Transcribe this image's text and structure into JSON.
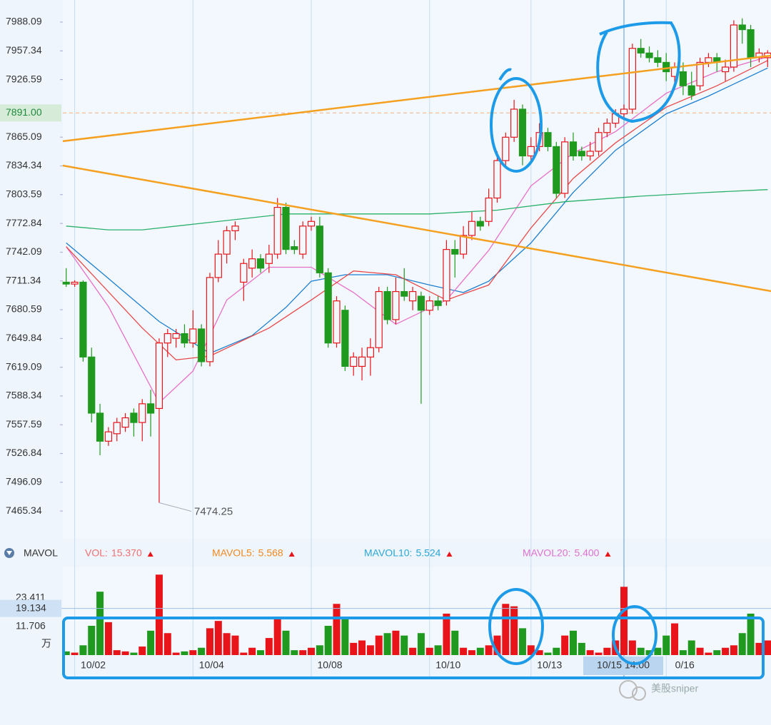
{
  "chart_data": {
    "type": "candlestick",
    "ylim": [
      7435.7,
      8011.7
    ],
    "yticks": [
      7988.09,
      7957.34,
      7926.59,
      7865.09,
      7834.34,
      7803.59,
      7772.84,
      7742.09,
      7711.34,
      7680.59,
      7649.84,
      7619.09,
      7588.34,
      7557.59,
      7526.84,
      7496.09,
      7465.34
    ],
    "current_price": {
      "value": 7891,
      "label": "7891.00"
    },
    "xlim": [
      -0.4,
      83.4
    ],
    "categories": [
      null,
      "10/02",
      null,
      null,
      null,
      null,
      null,
      null,
      null,
      null,
      null,
      null,
      null,
      null,
      null,
      "10/04",
      null,
      null,
      null,
      null,
      null,
      null,
      null,
      null,
      null,
      null,
      null,
      null,
      null,
      "10/08",
      null,
      null,
      null,
      null,
      null,
      null,
      null,
      null,
      null,
      null,
      null,
      null,
      null,
      "10/10",
      null,
      null,
      null,
      null,
      null,
      null,
      null,
      null,
      null,
      null,
      null,
      "10/13",
      null,
      null,
      null,
      null,
      null,
      null,
      null,
      null,
      null,
      null,
      "10/15 14:00",
      null,
      null,
      null,
      null,
      "0/16",
      null,
      null,
      null,
      null,
      null,
      null,
      null,
      null,
      null,
      null,
      null,
      null
    ],
    "cursor_index": 66,
    "up_color": "#e8141a",
    "down_color": "#1f9a1f",
    "ohlc": [
      [
        7710,
        7725,
        7705,
        7708
      ],
      [
        7708,
        7712,
        7705,
        7710
      ],
      [
        7710,
        7712,
        7625,
        7630
      ],
      [
        7630,
        7640,
        7560,
        7570
      ],
      [
        7570,
        7580,
        7525,
        7540
      ],
      [
        7540,
        7555,
        7535,
        7550
      ],
      [
        7548,
        7565,
        7540,
        7560
      ],
      [
        7555,
        7570,
        7550,
        7565
      ],
      [
        7570,
        7575,
        7545,
        7560
      ],
      [
        7560,
        7585,
        7540,
        7580
      ],
      [
        7580,
        7595,
        7545,
        7570
      ],
      [
        7575,
        7650,
        7474.25,
        7645
      ],
      [
        7645,
        7660,
        7630,
        7655
      ],
      [
        7650,
        7660,
        7640,
        7655
      ],
      [
        7655,
        7665,
        7640,
        7645
      ],
      [
        7645,
        7680,
        7640,
        7660
      ],
      [
        7660,
        7665,
        7620,
        7625
      ],
      [
        7625,
        7720,
        7620,
        7715
      ],
      [
        7715,
        7755,
        7710,
        7740
      ],
      [
        7740,
        7770,
        7730,
        7765
      ],
      [
        7765,
        7775,
        7755,
        7770
      ],
      [
        7710,
        7735,
        7690,
        7730
      ],
      [
        7725,
        7745,
        7715,
        7735
      ],
      [
        7735,
        7740,
        7720,
        7725
      ],
      [
        7730,
        7750,
        7720,
        7740
      ],
      [
        7740,
        7800,
        7735,
        7790
      ],
      [
        7790,
        7795,
        7740,
        7745
      ],
      [
        7748,
        7755,
        7740,
        7745
      ],
      [
        7740,
        7775,
        7735,
        7770
      ],
      [
        7770,
        7780,
        7765,
        7775
      ],
      [
        7770,
        7780,
        7715,
        7720
      ],
      [
        7720,
        7725,
        7640,
        7645
      ],
      [
        7645,
        7695,
        7640,
        7690
      ],
      [
        7680,
        7685,
        7615,
        7620
      ],
      [
        7620,
        7635,
        7610,
        7630
      ],
      [
        7620,
        7640,
        7605,
        7630
      ],
      [
        7630,
        7650,
        7610,
        7640
      ],
      [
        7640,
        7705,
        7635,
        7700
      ],
      [
        7700,
        7705,
        7665,
        7670
      ],
      [
        7670,
        7715,
        7665,
        7700
      ],
      [
        7700,
        7725,
        7690,
        7695
      ],
      [
        7690,
        7705,
        7680,
        7700
      ],
      [
        7695,
        7700,
        7580,
        7680
      ],
      [
        7680,
        7695,
        7675,
        7690
      ],
      [
        7690,
        7695,
        7680,
        7685
      ],
      [
        7690,
        7755,
        7685,
        7745
      ],
      [
        7745,
        7755,
        7715,
        7740
      ],
      [
        7740,
        7770,
        7735,
        7760
      ],
      [
        7760,
        7785,
        7755,
        7775
      ],
      [
        7775,
        7780,
        7765,
        7770
      ],
      [
        7775,
        7810,
        7770,
        7800
      ],
      [
        7800,
        7850,
        7795,
        7840
      ],
      [
        7840,
        7870,
        7835,
        7865
      ],
      [
        7865,
        7905,
        7860,
        7895
      ],
      [
        7895,
        7900,
        7835,
        7845
      ],
      [
        7845,
        7865,
        7840,
        7855
      ],
      [
        7855,
        7880,
        7850,
        7870
      ],
      [
        7870,
        7875,
        7850,
        7855
      ],
      [
        7855,
        7860,
        7800,
        7805
      ],
      [
        7805,
        7865,
        7800,
        7860
      ],
      [
        7860,
        7870,
        7840,
        7845
      ],
      [
        7850,
        7855,
        7840,
        7845
      ],
      [
        7845,
        7860,
        7840,
        7850
      ],
      [
        7850,
        7875,
        7845,
        7870
      ],
      [
        7870,
        7885,
        7865,
        7880
      ],
      [
        7880,
        7895,
        7875,
        7890
      ],
      [
        7890,
        7900,
        7885,
        7895
      ],
      [
        7895,
        7965,
        7890,
        7960
      ],
      [
        7960,
        7970,
        7950,
        7955
      ],
      [
        7955,
        7962,
        7945,
        7950
      ],
      [
        7950,
        7958,
        7940,
        7945
      ],
      [
        7945,
        7955,
        7925,
        7935
      ],
      [
        7930,
        7945,
        7920,
        7940
      ],
      [
        7935,
        7945,
        7910,
        7920
      ],
      [
        7920,
        7935,
        7905,
        7910
      ],
      [
        7920,
        7950,
        7915,
        7945
      ],
      [
        7945,
        7955,
        7940,
        7950
      ],
      [
        7950,
        7955,
        7935,
        7945
      ],
      [
        7935,
        7948,
        7925,
        7940
      ],
      [
        7940,
        7990,
        7935,
        7985
      ],
      [
        7985,
        7992,
        7965,
        7980
      ],
      [
        7980,
        7985,
        7940,
        7950
      ],
      [
        7950,
        7960,
        7945,
        7955
      ],
      [
        7950,
        7958,
        7940,
        7955
      ]
    ],
    "ma_lines": [
      {
        "color": "#1e7fd0",
        "x": [
          0,
          5,
          11,
          17,
          22,
          26,
          29,
          33,
          38,
          43,
          47,
          50,
          55,
          60,
          65,
          71,
          76,
          83
        ],
        "values": [
          7752,
          7714,
          7668,
          7634,
          7653,
          7683,
          7711,
          7718,
          7718,
          7707,
          7699,
          7711,
          7752,
          7806,
          7851,
          7890,
          7909,
          7939
        ]
      },
      {
        "color": "#e86fc8",
        "x": [
          0,
          5,
          11,
          15,
          19,
          24,
          29,
          34,
          39,
          45,
          50,
          55,
          60,
          65,
          71,
          77,
          83
        ],
        "values": [
          7748,
          7684,
          7581,
          7615,
          7691,
          7726,
          7726,
          7699,
          7665,
          7691,
          7744,
          7813,
          7848,
          7871,
          7912,
          7935,
          7951
        ]
      },
      {
        "color": "#e84a4a",
        "x": [
          0,
          9,
          13,
          17,
          24,
          29,
          34,
          39,
          45,
          50,
          55,
          60,
          65,
          71,
          77,
          83
        ],
        "values": [
          7748,
          7661,
          7627,
          7631,
          7661,
          7691,
          7722,
          7718,
          7691,
          7707,
          7768,
          7821,
          7859,
          7897,
          7920,
          7947
        ]
      },
      {
        "color": "#2bb06a",
        "x": [
          0,
          5,
          9,
          17,
          26,
          34,
          43,
          51,
          59,
          68,
          76,
          83
        ],
        "values": [
          7770,
          7766,
          7766,
          7774,
          7783,
          7783,
          7783,
          7787,
          7796,
          7802,
          7806,
          7809
        ]
      }
    ],
    "trendlines": [
      {
        "color": "#f5a020",
        "x": [
          -0.4,
          83.4
        ],
        "values": [
          7860.7,
          7952.2
        ]
      },
      {
        "color": "#f5a020",
        "x": [
          -0.4,
          83.4
        ],
        "values": [
          7834.7,
          7700.4
        ]
      }
    ],
    "indicator": {
      "name": "MAVOL",
      "items": [
        {
          "label": "VOL:",
          "value": {
            "value": 15.37,
            "label": "15.370"
          },
          "color": "#f07070"
        },
        {
          "label": "MAVOL5:",
          "value": {
            "value": 5.568,
            "label": "5.568"
          },
          "color": "#f08a20"
        },
        {
          "label": "MAVOL10:",
          "value": {
            "value": 5.524,
            "label": "5.524"
          },
          "color": "#2aa7d8"
        },
        {
          "label": "MAVOL20:",
          "value": {
            "value": 5.4,
            "label": "5.400"
          },
          "color": "#e070d0"
        }
      ]
    },
    "volume": {
      "ylim": [
        0,
        36
      ],
      "yticks": [
        23.411,
        11.706
      ],
      "unit": "万",
      "cursor": 19.134,
      "values": [
        1.5,
        1,
        4,
        12,
        26,
        13.5,
        2,
        1.5,
        1,
        3.5,
        10,
        33,
        9,
        1,
        1.5,
        2,
        3,
        11,
        14,
        9,
        8,
        1,
        3,
        2,
        7,
        15,
        10,
        2,
        2,
        3,
        4,
        12,
        21,
        15,
        5,
        6,
        4,
        8,
        9,
        10,
        8,
        3,
        9,
        3,
        4,
        17,
        10,
        3,
        2,
        3,
        4,
        8,
        21,
        20,
        11,
        4,
        2,
        1,
        3,
        8,
        10,
        5,
        2,
        1,
        3,
        6,
        28,
        6,
        3,
        2,
        3,
        8,
        13,
        2,
        6,
        3,
        1,
        2,
        3,
        4,
        9,
        17,
        5,
        6
      ]
    }
  },
  "watermark": "美股sniper"
}
